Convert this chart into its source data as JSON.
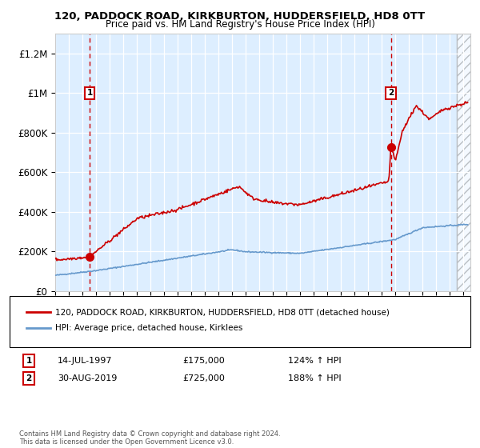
{
  "title": "120, PADDOCK ROAD, KIRKBURTON, HUDDERSFIELD, HD8 0TT",
  "subtitle": "Price paid vs. HM Land Registry's House Price Index (HPI)",
  "legend_line1": "120, PADDOCK ROAD, KIRKBURTON, HUDDERSFIELD, HD8 0TT (detached house)",
  "legend_line2": "HPI: Average price, detached house, Kirklees",
  "annotation1_date": "14-JUL-1997",
  "annotation1_price": "£175,000",
  "annotation1_hpi": "124% ↑ HPI",
  "annotation2_date": "30-AUG-2019",
  "annotation2_price": "£725,000",
  "annotation2_hpi": "188% ↑ HPI",
  "point1_x": 1997.54,
  "point1_y": 175000,
  "point2_x": 2019.66,
  "point2_y": 725000,
  "red_color": "#cc0000",
  "blue_color": "#6699cc",
  "bg_color": "#ddeeff",
  "ylim": [
    0,
    1300000
  ],
  "xlim": [
    1995,
    2025.5
  ],
  "yticks": [
    0,
    200000,
    400000,
    600000,
    800000,
    1000000,
    1200000
  ],
  "ytick_labels": [
    "£0",
    "£200K",
    "£400K",
    "£600K",
    "£800K",
    "£1M",
    "£1.2M"
  ],
  "xticks": [
    1995,
    1996,
    1997,
    1998,
    1999,
    2000,
    2001,
    2002,
    2003,
    2004,
    2005,
    2006,
    2007,
    2008,
    2009,
    2010,
    2011,
    2012,
    2013,
    2014,
    2015,
    2016,
    2017,
    2018,
    2019,
    2020,
    2021,
    2022,
    2023,
    2024,
    2025
  ],
  "footer": "Contains HM Land Registry data © Crown copyright and database right 2024.\nThis data is licensed under the Open Government Licence v3.0."
}
